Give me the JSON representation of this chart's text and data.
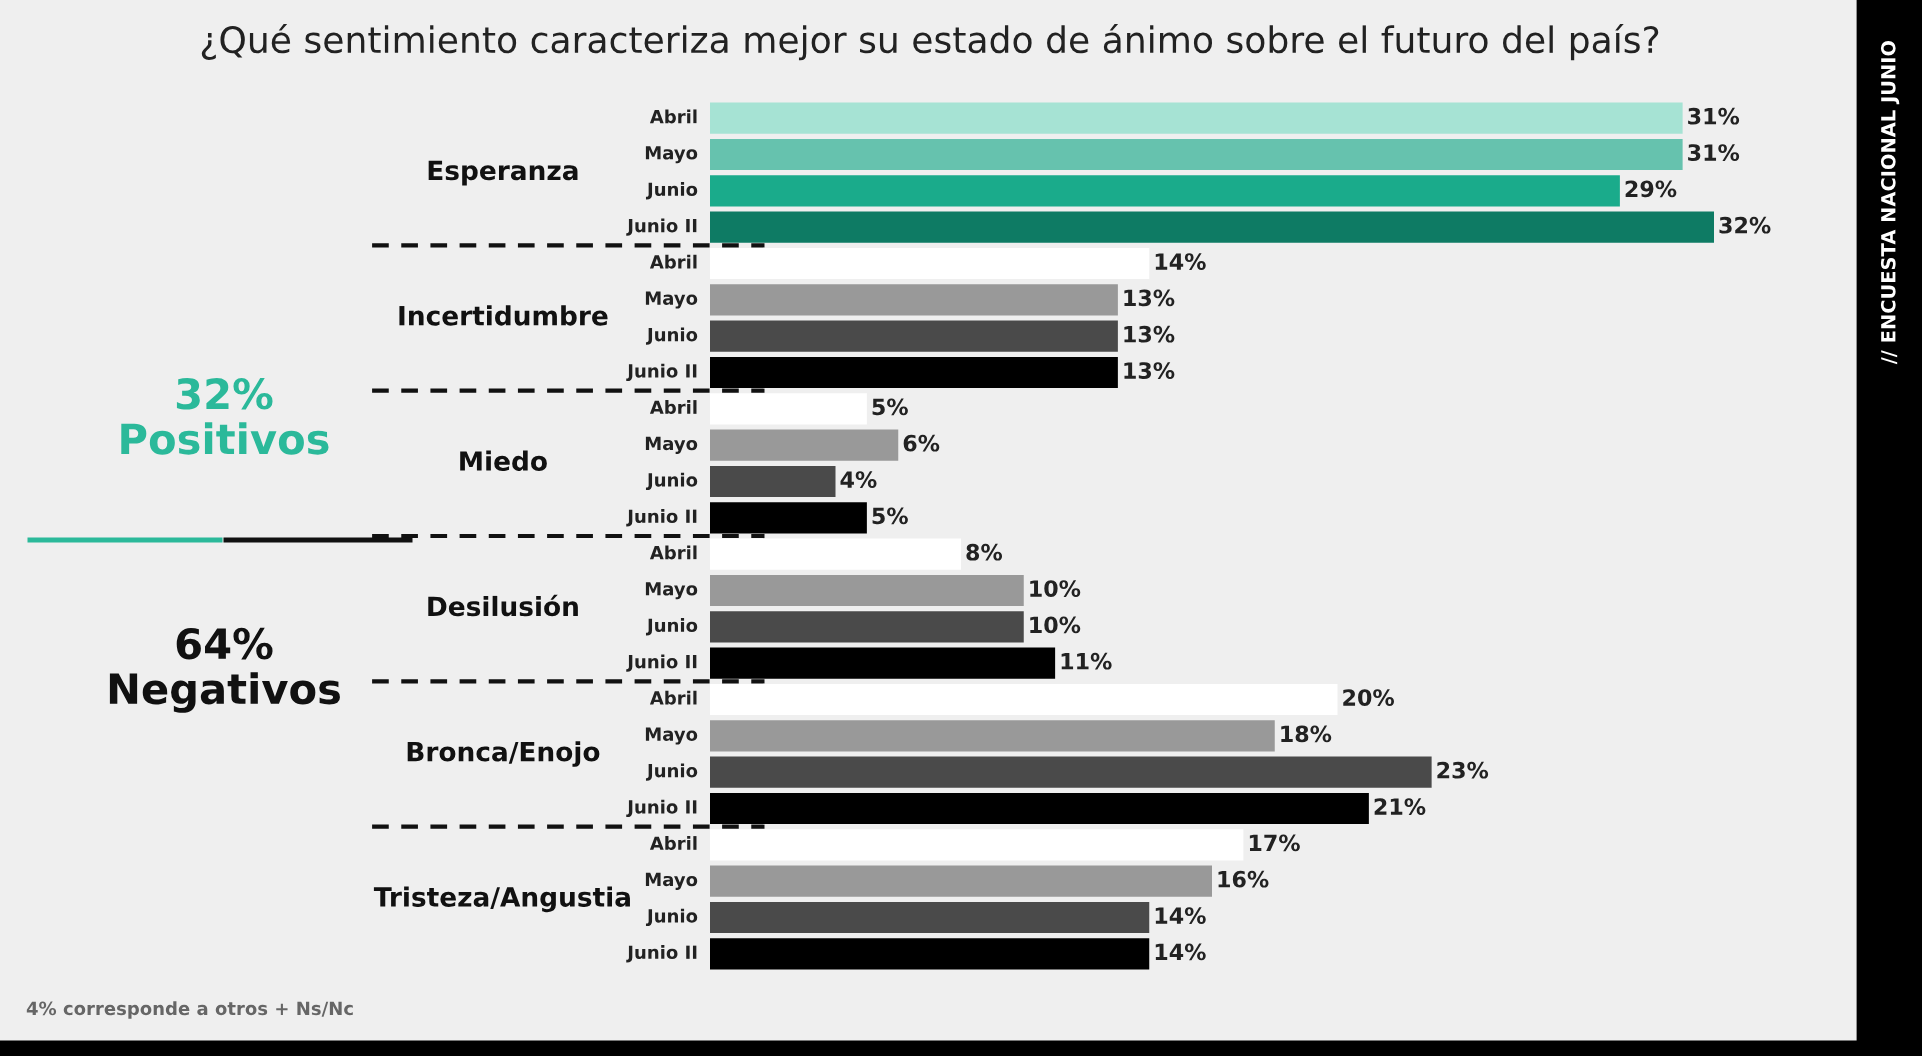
{
  "chart_data": {
    "type": "bar",
    "orientation": "horizontal",
    "title": "¿Qué sentimiento caracteriza mejor su estado de ánimo sobre el futuro del país?",
    "categories": [
      "Esperanza",
      "Incertidumbre",
      "Miedo",
      "Desilusión",
      "Bronca/Enojo",
      "Tristeza/Angustia"
    ],
    "series": [
      {
        "name": "Abril",
        "colors": [
          "#a6e3d4",
          "#ffffff",
          "#ffffff",
          "#ffffff",
          "#ffffff",
          "#ffffff"
        ],
        "values": [
          31,
          14,
          5,
          8,
          20,
          17
        ],
        "value_labels": [
          "31%",
          "14%",
          "5%",
          "8%",
          "20%",
          "17%"
        ]
      },
      {
        "name": "Mayo",
        "colors": [
          "#66c2ae",
          "#999999",
          "#999999",
          "#999999",
          "#999999",
          "#999999"
        ],
        "values": [
          31,
          13,
          6,
          10,
          18,
          16
        ],
        "value_labels": [
          "31%",
          "13%",
          "6%",
          "10%",
          "18%",
          "16%"
        ]
      },
      {
        "name": "Junio",
        "colors": [
          "#1aab8b",
          "#4a4a4a",
          "#4a4a4a",
          "#4a4a4a",
          "#4a4a4a",
          "#4a4a4a"
        ],
        "values": [
          29,
          13,
          4,
          10,
          23,
          14
        ],
        "value_labels": [
          "29%",
          "13%",
          "4%",
          "10%",
          "23%",
          "14%"
        ]
      },
      {
        "name": "Junio II",
        "colors": [
          "#0e7b64",
          "#000000",
          "#000000",
          "#000000",
          "#000000",
          "#000000"
        ],
        "values": [
          32,
          13,
          5,
          11,
          21,
          14
        ],
        "value_labels": [
          "32%",
          "13%",
          "5%",
          "11%",
          "21%",
          "14%"
        ]
      }
    ],
    "annotations": [
      "32%\nPositivos",
      "64%\nNegativos",
      "4% corresponde a otros + Ns/Nc",
      "// ENCUESTA NACIONAL JUNIO"
    ],
    "legend": false
  }
}
